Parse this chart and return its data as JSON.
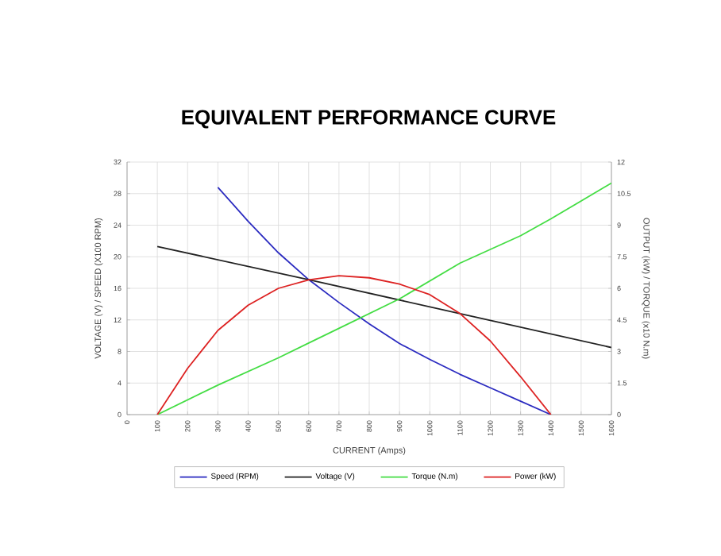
{
  "chart_data": {
    "type": "line",
    "title": "EQUIVALENT PERFORMANCE CURVE",
    "xlabel": "CURRENT (Amps)",
    "ylabel": "VOLTAGE (V) / SPEED (X100 RPM)",
    "y2label": "OUTPUT (kW) / TORQUE (x10 N.m)",
    "xlim": [
      0,
      1600
    ],
    "xticks": [
      0,
      100,
      200,
      300,
      400,
      500,
      600,
      700,
      800,
      900,
      1000,
      1100,
      1200,
      1300,
      1400,
      1500,
      1600
    ],
    "ylim": [
      0,
      32
    ],
    "yticks": [
      0,
      4,
      8,
      12,
      16,
      20,
      24,
      28,
      32
    ],
    "y2lim": [
      0,
      12
    ],
    "y2ticks": [
      0,
      1.5,
      3,
      4.5,
      6,
      7.5,
      9,
      10.5,
      12
    ],
    "grid": true,
    "legend": "bottom",
    "marker": "none",
    "line_style": "solid",
    "series": [
      {
        "name": "Speed (RPM)",
        "color": "#2b2bc0",
        "x": [
          300,
          400,
          500,
          600,
          700,
          800,
          900,
          1000,
          1100,
          1200,
          1300,
          1400
        ],
        "values": [
          28.8,
          24.5,
          20.5,
          17.1,
          14.2,
          11.5,
          9.0,
          7.0,
          5.1,
          3.4,
          1.7,
          0
        ]
      },
      {
        "name": "Voltage (V)",
        "color": "#222222",
        "x": [
          100,
          600,
          1100,
          1600
        ],
        "values": [
          21.3,
          17.1,
          12.8,
          8.5
        ]
      },
      {
        "name": "Torque (N.m)",
        "color": "#44dd44",
        "axis": "y2",
        "x": [
          100,
          300,
          500,
          600,
          700,
          900,
          1100,
          1300,
          1400,
          1600
        ],
        "values": [
          0,
          1.4,
          2.7,
          3.4,
          4.1,
          5.5,
          7.2,
          8.5,
          9.3,
          11.0
        ]
      },
      {
        "name": "Power (kW)",
        "color": "#dd2222",
        "axis": "y2",
        "x": [
          100,
          200,
          300,
          400,
          500,
          600,
          700,
          800,
          900,
          1000,
          1100,
          1200,
          1300,
          1400
        ],
        "values": [
          0,
          2.2,
          4.0,
          5.2,
          6.0,
          6.4,
          6.6,
          6.5,
          6.2,
          5.7,
          4.8,
          3.5,
          1.8,
          0
        ]
      }
    ]
  }
}
